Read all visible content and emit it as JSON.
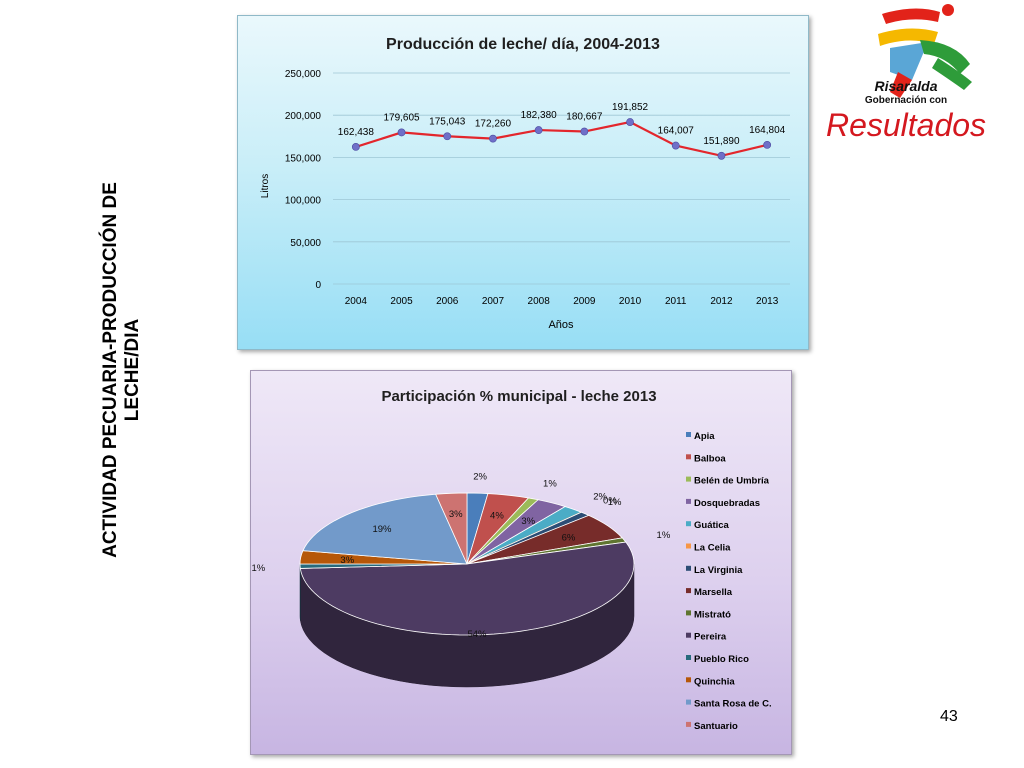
{
  "slide": {
    "side_title_line1": "ACTIVIDAD PECUARIA-PRODUCCIÓN DE",
    "side_title_line2": "LECHE/DIA",
    "number": "43"
  },
  "logo": {
    "line1": "Risaralda",
    "line2": "Gobernación con",
    "line3": "Resultados"
  },
  "chart_data": [
    {
      "type": "line",
      "title": "Producción  de leche/ día, 2004-2013",
      "xlabel": "Años",
      "ylabel": "Litros",
      "x": [
        "2004",
        "2005",
        "2006",
        "2007",
        "2008",
        "2009",
        "2010",
        "2011",
        "2012",
        "2013"
      ],
      "series": [
        {
          "values": [
            162438,
            179605,
            175043,
            172260,
            182380,
            180667,
            191852,
            164007,
            151890,
            164804
          ],
          "labels": [
            "162,438",
            "179,605",
            "175,043",
            "172,260",
            "182,380",
            "180,667",
            "191,852",
            "164,007",
            "151,890",
            "164,804"
          ],
          "color": "#e3262c",
          "marker_color": "#6f6fc8"
        }
      ],
      "ylim": [
        0,
        250000
      ],
      "yticks": [
        "0",
        "50,000",
        "100,000",
        "150,000",
        "200,000",
        "250,000"
      ],
      "grid": true
    },
    {
      "type": "pie",
      "title": "Participación % municipal - leche 2013",
      "legend_position": "right",
      "categories": [
        "Apia",
        "Balboa",
        "Belén de Umbría",
        "Dosquebradas",
        "Guática",
        "La Celia",
        "La Virginia",
        "Marsella",
        "Mistrató",
        "Pereira",
        "Pueblo Rico",
        "Quinchia",
        "Santa Rosa de C.",
        "Santuario"
      ],
      "values": [
        2,
        4,
        1,
        3,
        2,
        0,
        1,
        6,
        1,
        54,
        1,
        3,
        19,
        3
      ],
      "labels": [
        "2%",
        "4%",
        "1%",
        "3%",
        "2%",
        "0%",
        "1%",
        "6%",
        "1%",
        "54%",
        "1%",
        "3%",
        "19%",
        "3%"
      ],
      "colors": [
        "#4a7ebb",
        "#c0504d",
        "#9bbb59",
        "#8064a2",
        "#4bacc6",
        "#f79646",
        "#2c4d75",
        "#772c2a",
        "#5f7530",
        "#4d3b62",
        "#276a7c",
        "#b65708",
        "#729aca",
        "#cd7371"
      ]
    }
  ]
}
